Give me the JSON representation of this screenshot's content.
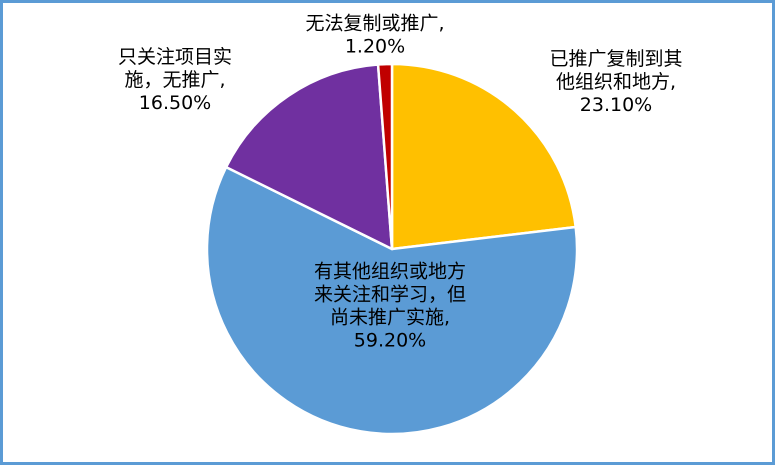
{
  "chart_data": {
    "type": "pie",
    "title": "",
    "start_angle_deg": 0,
    "direction": "clockwise",
    "slices": [
      {
        "label_lines": [
          "已推广复制到其",
          "他组织和地方,",
          "23.10%"
        ],
        "name": "已推广复制到其他组织和地方",
        "value": 23.1,
        "value_label": "23.10%",
        "color": "#ffc000"
      },
      {
        "label_lines": [
          "有其他组织或地方",
          "来关注和学习，但",
          "尚未推广实施,",
          "59.20%"
        ],
        "name": "有其他组织或地方来关注和学习，但尚未推广实施",
        "value": 59.2,
        "value_label": "59.20%",
        "color": "#5b9bd5"
      },
      {
        "label_lines": [
          "只关注项目实",
          "施，无推广,",
          "16.50%"
        ],
        "name": "只关注项目实施，无推广",
        "value": 16.5,
        "value_label": "16.50%",
        "color": "#7030a0"
      },
      {
        "label_lines": [
          "无法复制或推广,",
          "1.20%"
        ],
        "name": "无法复制或推广",
        "value": 1.2,
        "value_label": "1.20%",
        "color": "#c00000"
      }
    ],
    "legend": "none",
    "slice_border_color": "#ffffff"
  }
}
